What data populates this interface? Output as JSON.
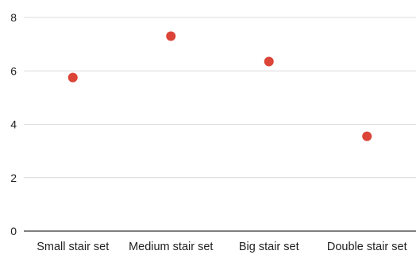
{
  "chart_data": {
    "type": "scatter",
    "categories": [
      "Small stair set",
      "Medium stair set",
      "Big stair set",
      "Double stair set"
    ],
    "series": [
      {
        "values": [
          5.75,
          7.3,
          6.35,
          3.55
        ],
        "color": "#db4437"
      }
    ],
    "title": "",
    "xlabel": "",
    "ylabel": "",
    "ylim": [
      0,
      8
    ],
    "yticks": [
      "0",
      "2",
      "4",
      "6",
      "8"
    ],
    "grid": true,
    "legend": "none"
  }
}
